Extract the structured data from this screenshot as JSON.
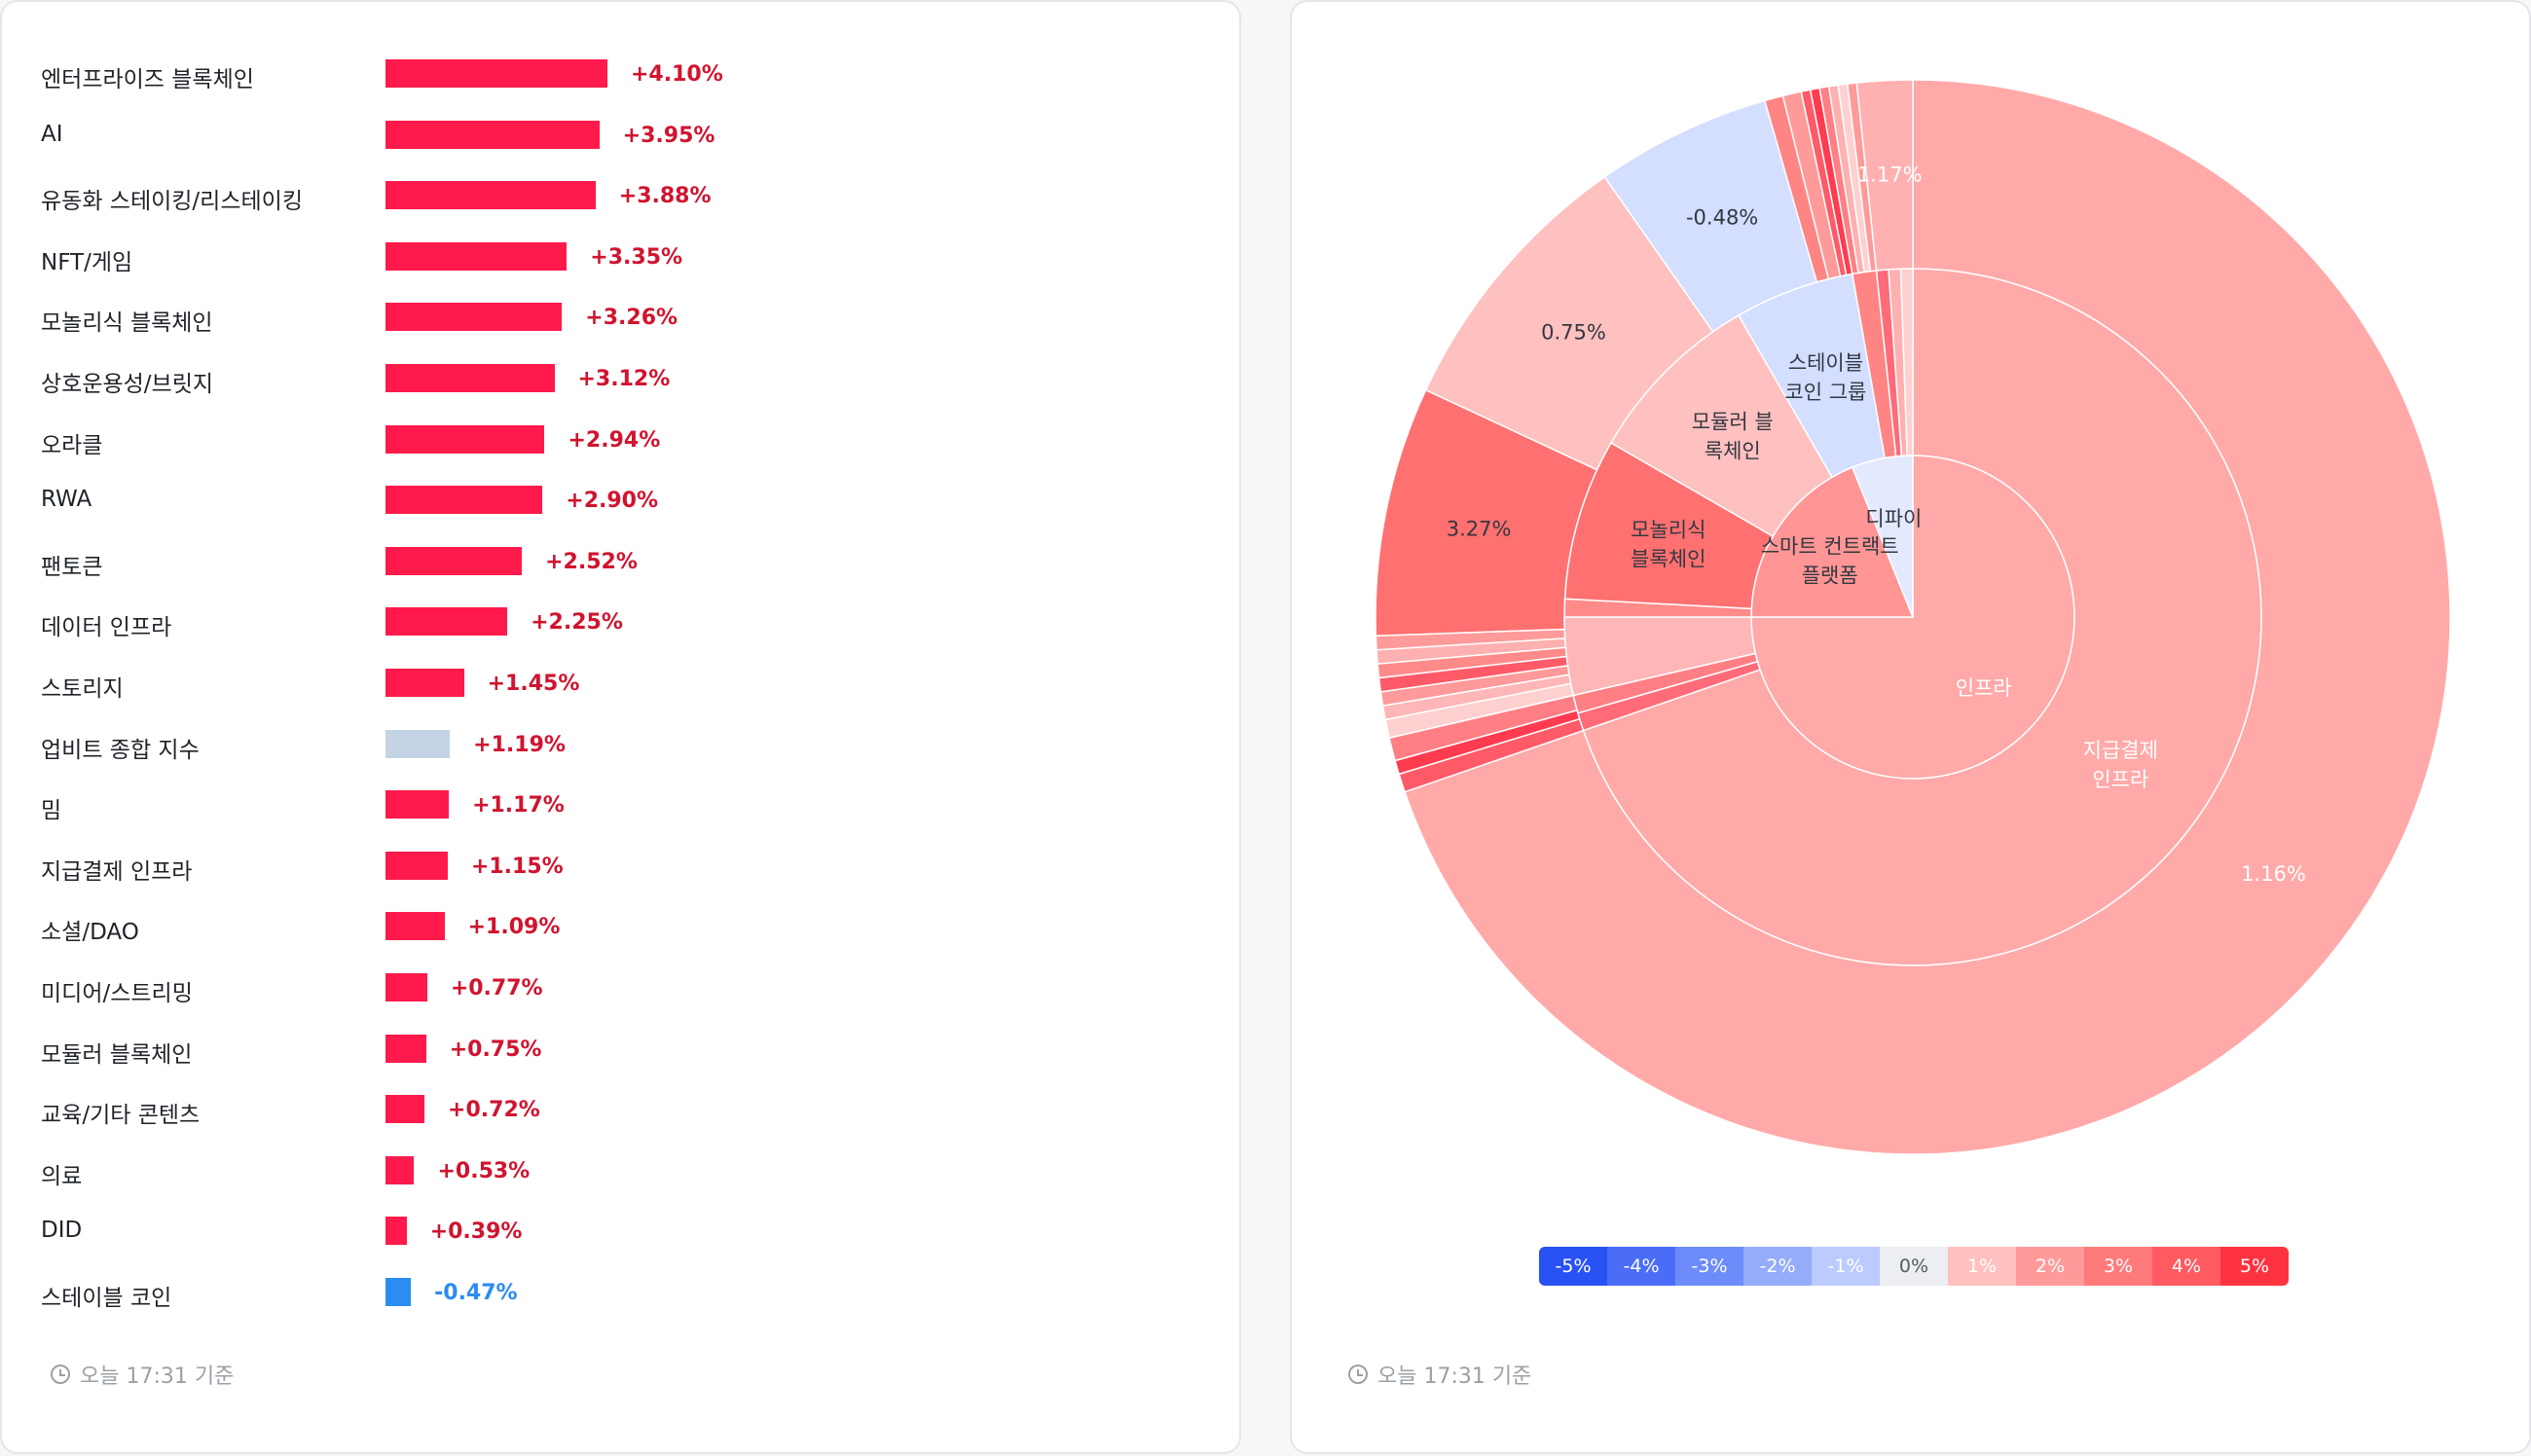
{
  "bar_chart": {
    "chart_data": {
      "type": "bar",
      "orientation": "horizontal",
      "categories": [
        "엔터프라이즈 블록체인",
        "AI",
        "유동화 스테이킹/리스테이킹",
        "NFT/게임",
        "모놀리식 블록체인",
        "상호운용성/브릿지",
        "오라클",
        "RWA",
        "팬토큰",
        "데이터 인프라",
        "스토리지",
        "업비트 종합 지수",
        "밈",
        "지급결제 인프라",
        "소셜/DAO",
        "미디어/스트리밍",
        "모듈러 블록체인",
        "교육/기타 콘텐츠",
        "의료",
        "DID",
        "스테이블 코인"
      ],
      "values": [
        4.1,
        3.95,
        3.88,
        3.35,
        3.26,
        3.12,
        2.94,
        2.9,
        2.52,
        2.25,
        1.45,
        1.19,
        1.17,
        1.15,
        1.09,
        0.77,
        0.75,
        0.72,
        0.53,
        0.39,
        -0.47
      ],
      "value_labels": [
        "+4.10%",
        "+3.95%",
        "+3.88%",
        "+3.35%",
        "+3.26%",
        "+3.12%",
        "+2.94%",
        "+2.90%",
        "+2.52%",
        "+2.25%",
        "+1.45%",
        "+1.19%",
        "+1.17%",
        "+1.15%",
        "+1.09%",
        "+0.77%",
        "+0.75%",
        "+0.72%",
        "+0.53%",
        "+0.39%",
        "-0.47%"
      ],
      "highlight_category": "업비트 종합 지수"
    },
    "colors": {
      "positive": "#ff1a4b",
      "negative": "#2b8cf2",
      "index": "#c3d3e4",
      "positive_text": "#d0142f",
      "negative_text": "#2b8cf2"
    },
    "footer": "오늘 17:31 기준"
  },
  "sunburst": {
    "chart_data": {
      "type": "sunburst",
      "rings": {
        "inner": [
          {
            "label": "인프라",
            "start": 0,
            "end": 270,
            "color": "#ffa9a9"
          },
          {
            "label": "스마트 컨트랙트\n플랫폼",
            "start": 270,
            "end": 338,
            "color": "#ff9595"
          },
          {
            "label": "디파이",
            "start": 338,
            "end": 360,
            "color": "#e3e9ff"
          }
        ],
        "middle": [
          {
            "label": "지급결제\n인프라",
            "start": 0,
            "end": 251,
            "color": "#ffa9a9"
          },
          {
            "label": "",
            "start": 251,
            "end": 254,
            "color": "#ff6b78"
          },
          {
            "label": "",
            "start": 254,
            "end": 257,
            "color": "#ff7f85"
          },
          {
            "label": "",
            "start": 257,
            "end": 270,
            "color": "#ffb6b6"
          },
          {
            "label": "",
            "start": 270,
            "end": 273,
            "color": "#ff8a8a"
          },
          {
            "label": "모놀리식\n블록체인",
            "start": 273,
            "end": 300,
            "color": "#ff7070"
          },
          {
            "label": "모듈러 블\n록체인",
            "start": 300,
            "end": 330,
            "color": "#ffc0c0"
          },
          {
            "label": "스테이블\n코인 그룹",
            "start": 330,
            "end": 350,
            "color": "#d4deff"
          },
          {
            "label": "",
            "start": 350,
            "end": 354,
            "color": "#ff8484"
          },
          {
            "label": "",
            "start": 354,
            "end": 356,
            "color": "#ff6b78"
          },
          {
            "label": "",
            "start": 356,
            "end": 358,
            "color": "#ffb0b0"
          },
          {
            "label": "",
            "start": 358,
            "end": 360,
            "color": "#ffd0d0"
          }
        ],
        "outer": [
          {
            "label": "1.16%",
            "start": 0,
            "end": 251,
            "color": "#ffa9a9"
          },
          {
            "label": "",
            "start": 251,
            "end": 253,
            "color": "#ff5a68"
          },
          {
            "label": "",
            "start": 253,
            "end": 254.5,
            "color": "#ff3b4f"
          },
          {
            "label": "",
            "start": 254.5,
            "end": 257,
            "color": "#ff7f85"
          },
          {
            "label": "",
            "start": 257,
            "end": 259,
            "color": "#ffd0d0"
          },
          {
            "label": "",
            "start": 259,
            "end": 260.5,
            "color": "#ffb6b6"
          },
          {
            "label": "",
            "start": 260.5,
            "end": 262,
            "color": "#ff9a9a"
          },
          {
            "label": "",
            "start": 262,
            "end": 263.5,
            "color": "#ff5a68"
          },
          {
            "label": "",
            "start": 263.5,
            "end": 265,
            "color": "#ff8a8a"
          },
          {
            "label": "",
            "start": 265,
            "end": 266.5,
            "color": "#ffb0b0"
          },
          {
            "label": "",
            "start": 266.5,
            "end": 268,
            "color": "#ff9a9a"
          },
          {
            "label": "3.27%",
            "start": 268,
            "end": 295,
            "color": "#ff7070"
          },
          {
            "label": "0.75%",
            "start": 295,
            "end": 325,
            "color": "#ffc0c0"
          },
          {
            "label": "-0.48%",
            "start": 325,
            "end": 344,
            "color": "#d4deff"
          },
          {
            "label": "",
            "start": 344,
            "end": 346,
            "color": "#ff8484"
          },
          {
            "label": "",
            "start": 346,
            "end": 348,
            "color": "#ff9a9a"
          },
          {
            "label": "",
            "start": 348,
            "end": 349,
            "color": "#ff5a68"
          },
          {
            "label": "",
            "start": 349,
            "end": 350,
            "color": "#ff3b4f"
          },
          {
            "label": "",
            "start": 350,
            "end": 351,
            "color": "#ff7f85"
          },
          {
            "label": "",
            "start": 351,
            "end": 352,
            "color": "#ffb0b0"
          },
          {
            "label": "",
            "start": 352,
            "end": 353,
            "color": "#ffd0d0"
          },
          {
            "label": "",
            "start": 353,
            "end": 354,
            "color": "#ff9a9a"
          },
          {
            "label": "1.17%",
            "start": 354,
            "end": 360,
            "color": "#ffb0b0"
          }
        ]
      }
    },
    "legend": [
      {
        "label": "-5%",
        "color": "#2952f5"
      },
      {
        "label": "-4%",
        "color": "#4a6cf7"
      },
      {
        "label": "-3%",
        "color": "#6e8cf9"
      },
      {
        "label": "-2%",
        "color": "#95acfb"
      },
      {
        "label": "-1%",
        "color": "#bccbfd"
      },
      {
        "label": "0%",
        "color": "#eceef2"
      },
      {
        "label": "1%",
        "color": "#ffc0c0"
      },
      {
        "label": "2%",
        "color": "#ff9a9a"
      },
      {
        "label": "3%",
        "color": "#ff7b7b"
      },
      {
        "label": "4%",
        "color": "#ff5a62"
      },
      {
        "label": "5%",
        "color": "#ff3340"
      }
    ],
    "footer": "오늘 17:31 기준"
  }
}
